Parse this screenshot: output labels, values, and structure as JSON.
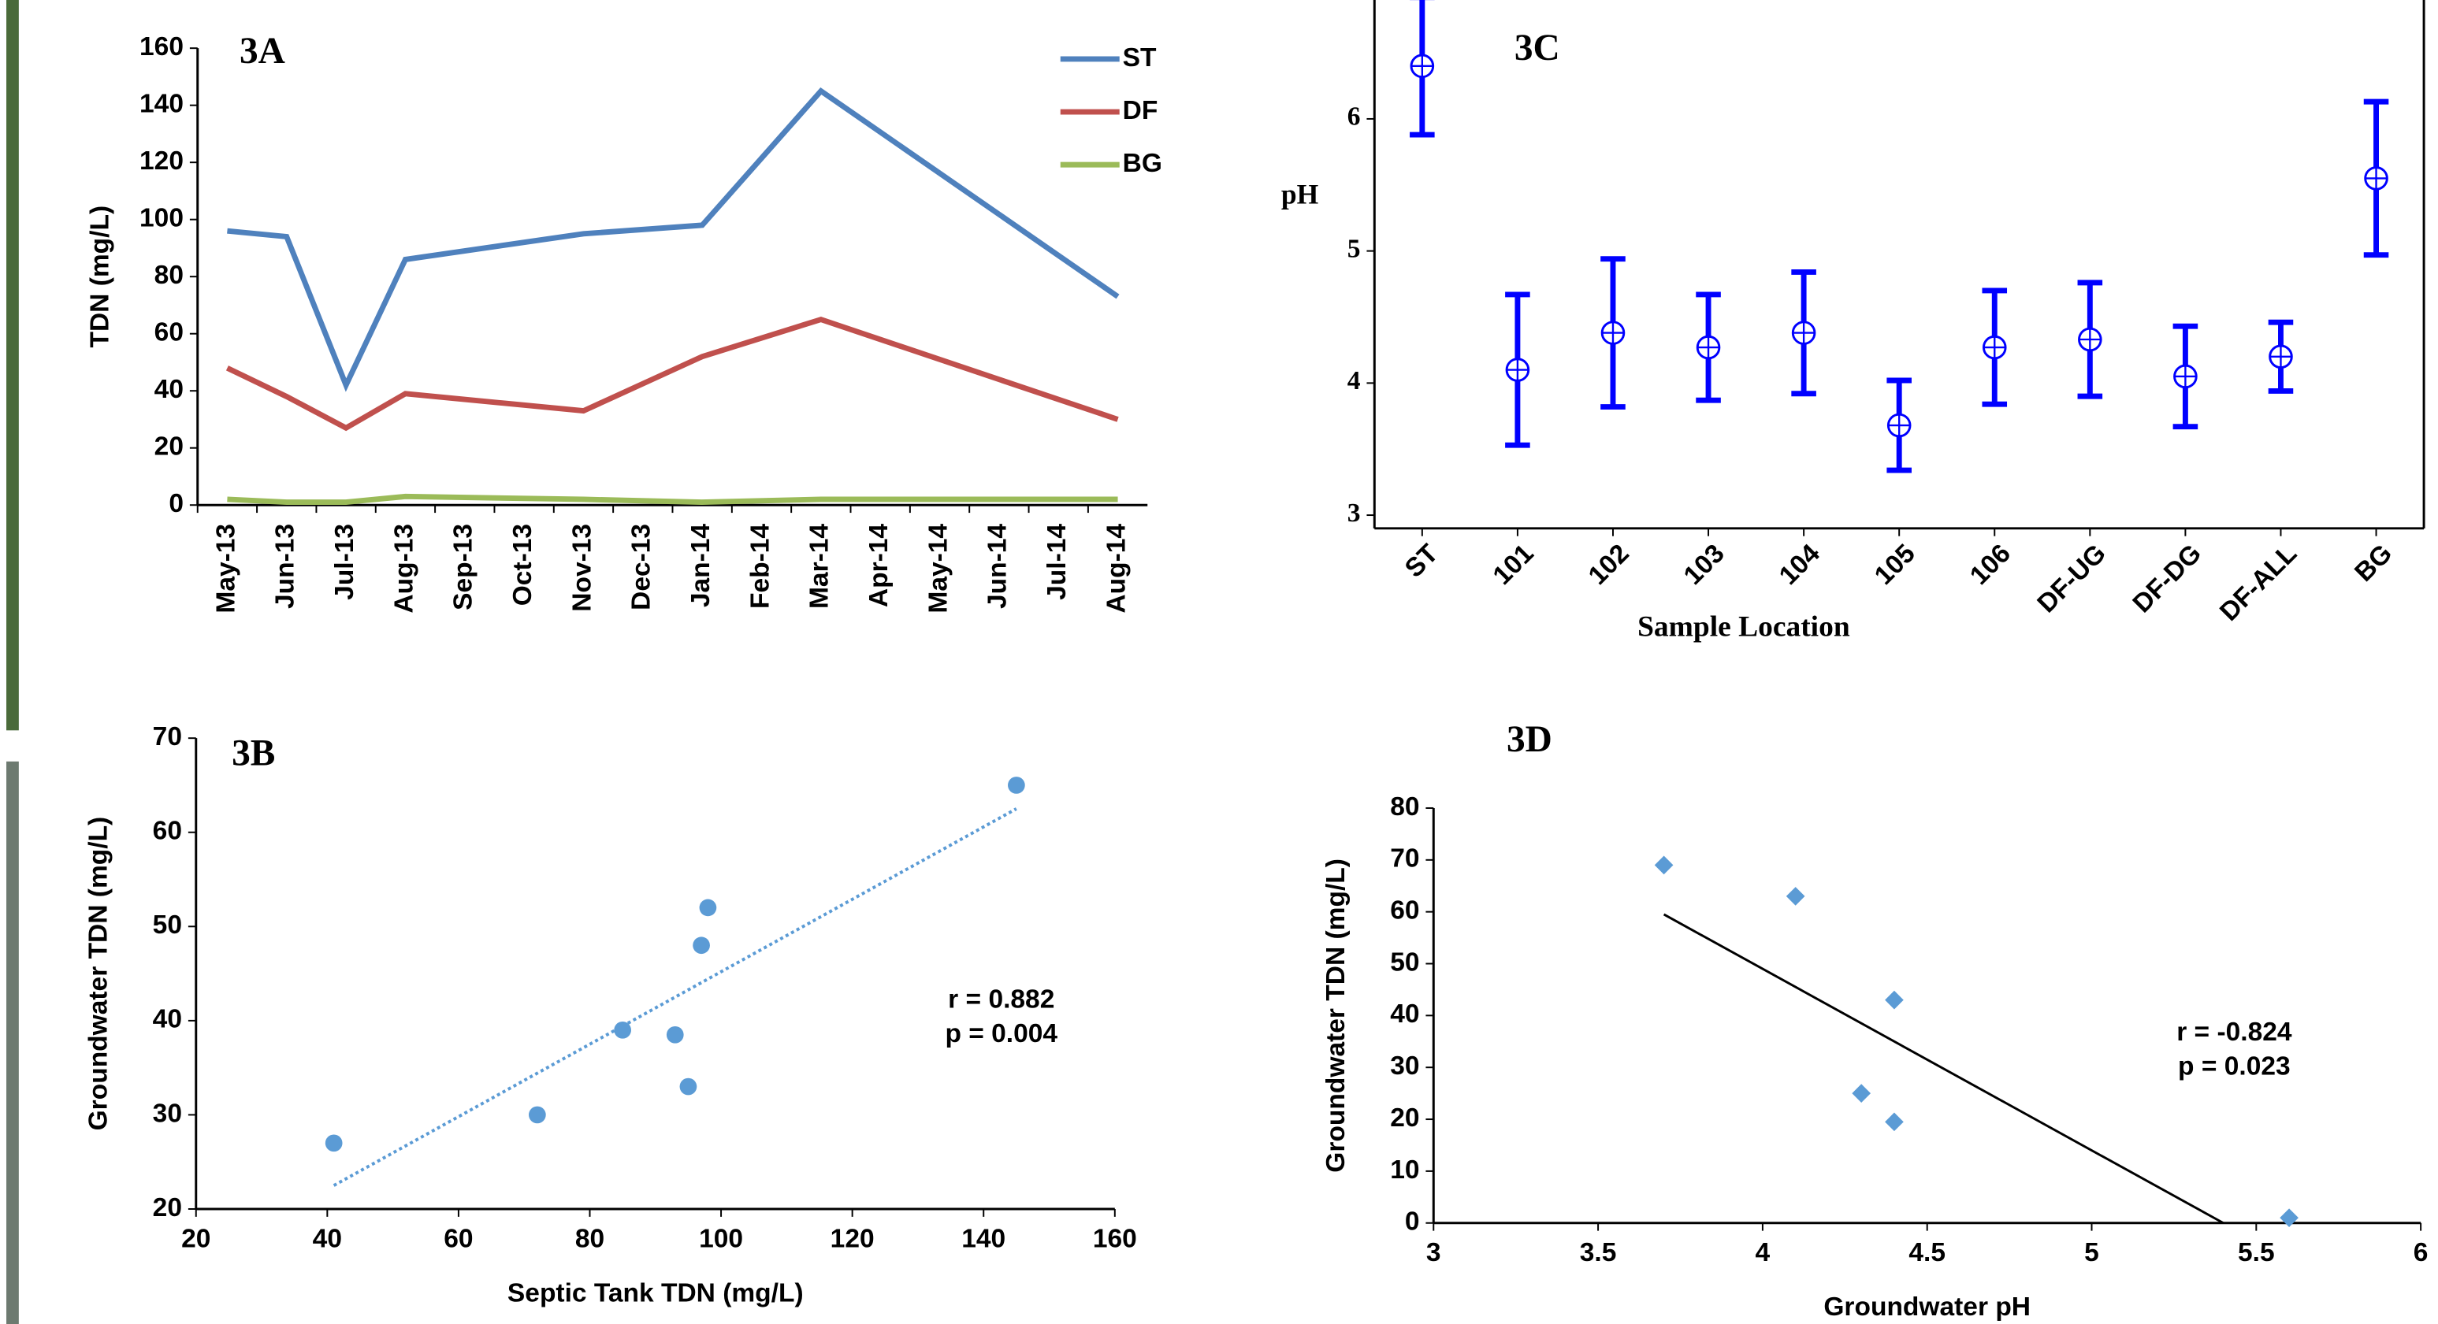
{
  "chart_data": [
    {
      "type": "line",
      "title": "3A",
      "y_label": "TDN (mg/L)",
      "x": [
        "May-13",
        "Jun-13",
        "Jul-13",
        "Aug-13",
        "Nov-13",
        "Jan-14",
        "Mar-14",
        "Aug-14"
      ],
      "xticks": [
        "May-13",
        "Jun-13",
        "Jul-13",
        "Aug-13",
        "Sep-13",
        "Oct-13",
        "Nov-13",
        "Dec-13",
        "Jan-14",
        "Feb-14",
        "Mar-14",
        "Apr-14",
        "May-14",
        "Jun-14",
        "Jul-14",
        "Aug-14"
      ],
      "series": [
        {
          "name": "ST",
          "color": "#4f81bd",
          "values": [
            96,
            94,
            42,
            86,
            95,
            98,
            145,
            73
          ]
        },
        {
          "name": "DF",
          "color": "#c0504d",
          "values": [
            48,
            38,
            27,
            39,
            33,
            52,
            65,
            30
          ]
        },
        {
          "name": "BG",
          "color": "#9bbb59",
          "values": [
            2,
            1,
            1,
            3,
            2,
            1,
            2,
            2
          ]
        }
      ],
      "ylim": [
        0,
        160
      ],
      "yticks": [
        0,
        20,
        40,
        60,
        80,
        100,
        120,
        140,
        160
      ],
      "legend": "top-right"
    },
    {
      "type": "scatter",
      "title": "3B",
      "x_label": "Septic Tank TDN (mg/L)",
      "y_label": "Groundwater TDN (mg/L)",
      "x": [
        41,
        72,
        85,
        93,
        95,
        97,
        98,
        145
      ],
      "values": [
        27,
        30,
        39,
        38.5,
        33,
        48,
        52,
        65
      ],
      "color": "#5b9bd5",
      "marker": "circle",
      "trendline": {
        "x": [
          41,
          145
        ],
        "y": [
          22.5,
          62.5
        ],
        "style": "dotted"
      },
      "annotations": [
        "r = 0.882",
        "p = 0.004"
      ],
      "xlim": [
        20,
        160
      ],
      "xticks": [
        20,
        40,
        60,
        80,
        100,
        120,
        140,
        160
      ],
      "ylim": [
        20,
        70
      ],
      "yticks": [
        20,
        30,
        40,
        50,
        60,
        70
      ]
    },
    {
      "type": "errorbar",
      "title": "3C",
      "x_label": "Sample Location",
      "y_label": "pH",
      "categories": [
        "ST",
        "101",
        "102",
        "103",
        "104",
        "105",
        "106",
        "DF-UG",
        "DF-DG",
        "DF-ALL",
        "BG"
      ],
      "values": [
        6.4,
        4.1,
        4.38,
        4.27,
        4.38,
        3.68,
        4.27,
        4.33,
        4.05,
        4.2,
        5.55
      ],
      "errors": [
        0.52,
        0.57,
        0.56,
        0.4,
        0.46,
        0.34,
        0.43,
        0.43,
        0.38,
        0.26,
        0.58
      ],
      "color": "#0000ff",
      "ylim": [
        2.9,
        6.9
      ],
      "yticks": [
        3,
        4,
        5,
        6
      ]
    },
    {
      "type": "scatter",
      "title": "3D",
      "x_label": "Groundwater pH",
      "y_label": "Groundwater TDN (mg/L)",
      "x": [
        3.7,
        4.1,
        4.4,
        4.3,
        4.4,
        5.6
      ],
      "values": [
        69,
        63,
        43,
        25,
        19.5,
        1
      ],
      "color": "#5b9bd5",
      "marker": "diamond",
      "trendline": {
        "x": [
          3.7,
          5.4
        ],
        "y": [
          59.5,
          0
        ],
        "style": "solid"
      },
      "annotations": [
        "r = -0.824",
        "p = 0.023"
      ],
      "xlim": [
        3,
        6
      ],
      "xticks": [
        3,
        3.5,
        4,
        4.5,
        5,
        5.5,
        6
      ],
      "ylim": [
        0,
        80
      ],
      "yticks": [
        0,
        10,
        20,
        30,
        40,
        50,
        60,
        70,
        80
      ]
    }
  ]
}
